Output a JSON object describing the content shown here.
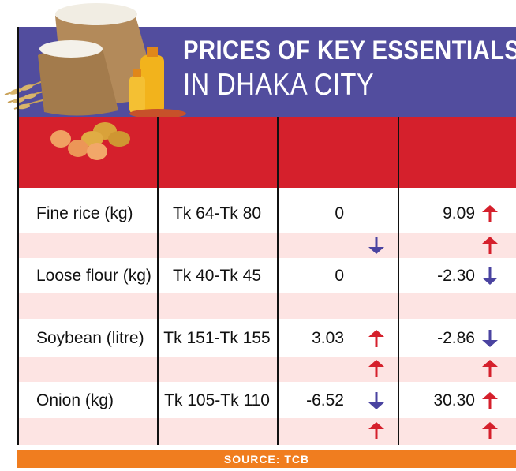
{
  "title": {
    "line1": "PRICES OF KEY ESSENTIALS",
    "line2": "IN DHAKA CITY"
  },
  "source": "SOURCE: TCB",
  "colors": {
    "title_band": "#524d9e",
    "header_band": "#d5202c",
    "row_band": "#fde4e3",
    "source_bar": "#f07d1f",
    "arrow_up": "#d5202c",
    "arrow_down": "#4a43a0"
  },
  "chart_data": {
    "type": "table",
    "rows": [
      {
        "item": "Fine rice (kg)",
        "price_range": "Tk 64-Tk 80",
        "change_1": "0",
        "change_2": "9.09",
        "arrow_1": null,
        "arrow_2": "up",
        "extra_arrow_1": "down",
        "extra_arrow_2": "up"
      },
      {
        "item": "Loose flour (kg)",
        "price_range": "Tk 40-Tk 45",
        "change_1": "0",
        "change_2": "-2.30",
        "arrow_1": null,
        "arrow_2": "down",
        "extra_arrow_1": null,
        "extra_arrow_2": null
      },
      {
        "item": "Soybean (litre)",
        "price_range": "Tk 151-Tk 155",
        "change_1": "3.03",
        "change_2": "-2.86",
        "arrow_1": "up",
        "arrow_2": "down",
        "extra_arrow_1": "up",
        "extra_arrow_2": "up"
      },
      {
        "item": "Onion (kg)",
        "price_range": "Tk 105-Tk 110",
        "change_1": "-6.52",
        "change_2": "30.30",
        "arrow_1": "down",
        "arrow_2": "up",
        "extra_arrow_1": "up",
        "extra_arrow_2": "up"
      }
    ]
  }
}
